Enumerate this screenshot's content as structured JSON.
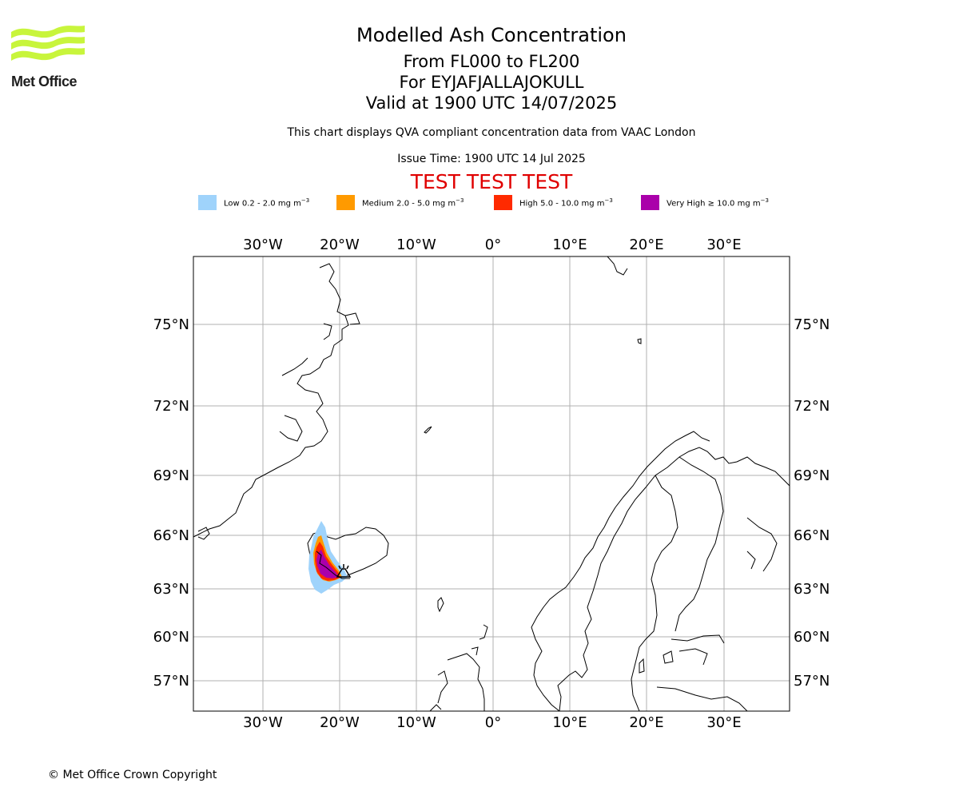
{
  "header": {
    "logo_text": "Met Office",
    "title": "Modelled Ash Concentration",
    "level_range": "From FL000 to FL200",
    "volcano": "For EYJAFJALLAJOKULL",
    "valid_time": "Valid at 1900 UTC 14/07/2025",
    "description": "This chart displays QVA compliant concentration data from VAAC London",
    "issue_time": "Issue Time: 1900 UTC 14 Jul 2025",
    "test_banner": "TEST TEST TEST"
  },
  "legend": [
    {
      "label": "Low 0.2 - 2.0 mg m",
      "unit_exp": "−3",
      "color": "#9fd3fb"
    },
    {
      "label": "Medium 2.0 - 5.0 mg m",
      "unit_exp": "−3",
      "color": "#ff9a00"
    },
    {
      "label": "High 5.0 - 10.0 mg m",
      "unit_exp": "−3",
      "color": "#ff2a00"
    },
    {
      "label": "Very High  ≥  10.0 mg m",
      "unit_exp": "−3",
      "color": "#aa00aa"
    }
  ],
  "map": {
    "lon_labels": [
      "30°W",
      "20°W",
      "10°W",
      "0°",
      "10°E",
      "20°E",
      "30°E"
    ],
    "lat_labels": [
      "75°N",
      "72°N",
      "69°N",
      "66°N",
      "63°N",
      "60°N",
      "57°N"
    ],
    "volcano_marker": "volcano-icon"
  },
  "footer": {
    "copyright": "© Met Office Crown Copyright"
  }
}
